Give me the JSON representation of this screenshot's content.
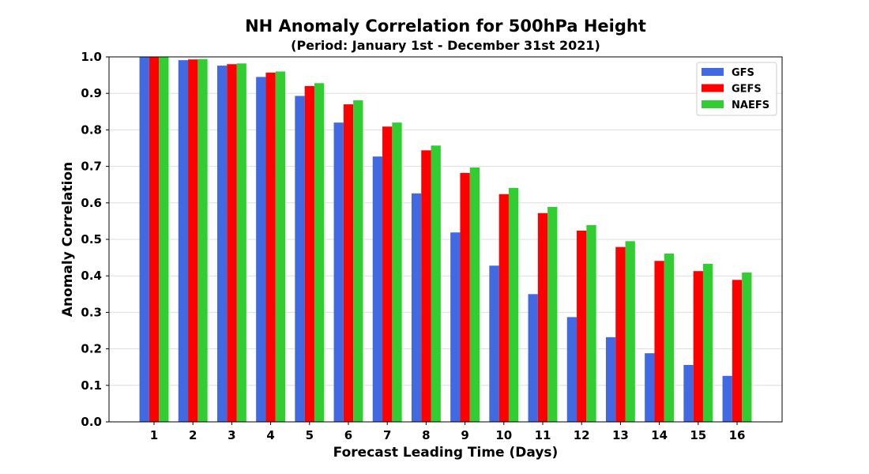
{
  "chart_data": {
    "type": "bar",
    "title": "NH Anomaly Correlation for 500hPa Height",
    "subtitle": "(Period: January 1st - December 31st 2021)",
    "xlabel": "Forecast Leading Time (Days)",
    "ylabel": "Anomaly Correlation",
    "categories": [
      "1",
      "2",
      "3",
      "4",
      "5",
      "6",
      "7",
      "8",
      "9",
      "10",
      "11",
      "12",
      "13",
      "14",
      "15",
      "16"
    ],
    "ylim": [
      0.0,
      1.0
    ],
    "yticks": [
      "0.0",
      "0.1",
      "0.2",
      "0.3",
      "0.4",
      "0.5",
      "0.6",
      "0.7",
      "0.8",
      "0.9",
      "1.0"
    ],
    "grid": "horizontal",
    "legend_position": "top-right",
    "series": [
      {
        "name": "GFS",
        "color": "#4169e1",
        "values": [
          0.999,
          0.991,
          0.976,
          0.945,
          0.893,
          0.82,
          0.727,
          0.626,
          0.519,
          0.428,
          0.35,
          0.287,
          0.232,
          0.188,
          0.156,
          0.126
        ]
      },
      {
        "name": "GEFS",
        "color": "#ff0000",
        "values": [
          0.999,
          0.993,
          0.98,
          0.957,
          0.92,
          0.87,
          0.809,
          0.744,
          0.682,
          0.624,
          0.572,
          0.524,
          0.479,
          0.441,
          0.413,
          0.389
        ]
      },
      {
        "name": "NAEFS",
        "color": "#32cd32",
        "values": [
          0.999,
          0.994,
          0.982,
          0.96,
          0.928,
          0.881,
          0.82,
          0.757,
          0.697,
          0.641,
          0.589,
          0.539,
          0.495,
          0.461,
          0.433,
          0.409
        ]
      }
    ]
  }
}
